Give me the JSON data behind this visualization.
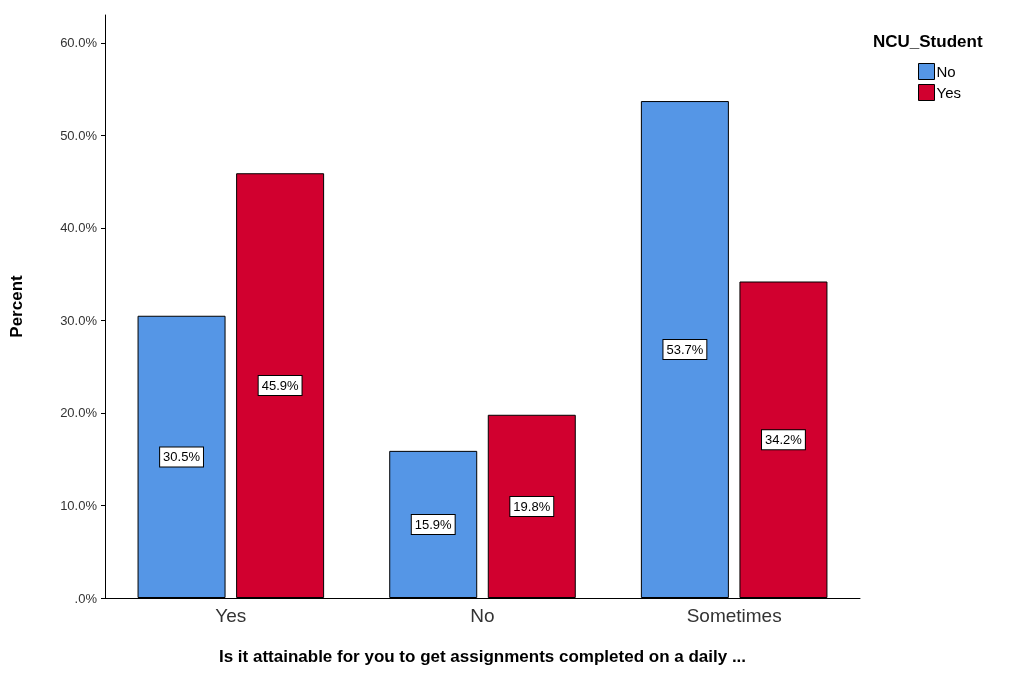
{
  "chart_data": {
    "type": "bar",
    "xlabel": "Is it attainable for you to get assignments completed on a daily ...",
    "ylabel": "Percent",
    "legend_title": "NCU_Student",
    "categories": [
      "Yes",
      "No",
      "Sometimes"
    ],
    "series": [
      {
        "name": "No",
        "color": "#5596e6",
        "values": [
          30.5,
          15.9,
          53.7
        ],
        "value_labels": [
          "30.5%",
          "15.9%",
          "53.7%"
        ]
      },
      {
        "name": "Yes",
        "color": "#d1002f",
        "values": [
          45.9,
          19.8,
          34.2
        ],
        "value_labels": [
          "45.9%",
          "19.8%",
          "34.2%"
        ]
      }
    ],
    "ylim": [
      0,
      63
    ],
    "yticks": [
      {
        "value": 0,
        "label": ".0%"
      },
      {
        "value": 10,
        "label": "10.0%"
      },
      {
        "value": 20,
        "label": "20.0%"
      },
      {
        "value": 30,
        "label": "30.0%"
      },
      {
        "value": 40,
        "label": "40.0%"
      },
      {
        "value": 50,
        "label": "50.0%"
      },
      {
        "value": 60,
        "label": "60.0%"
      }
    ],
    "grid": false,
    "legend": "top right"
  }
}
